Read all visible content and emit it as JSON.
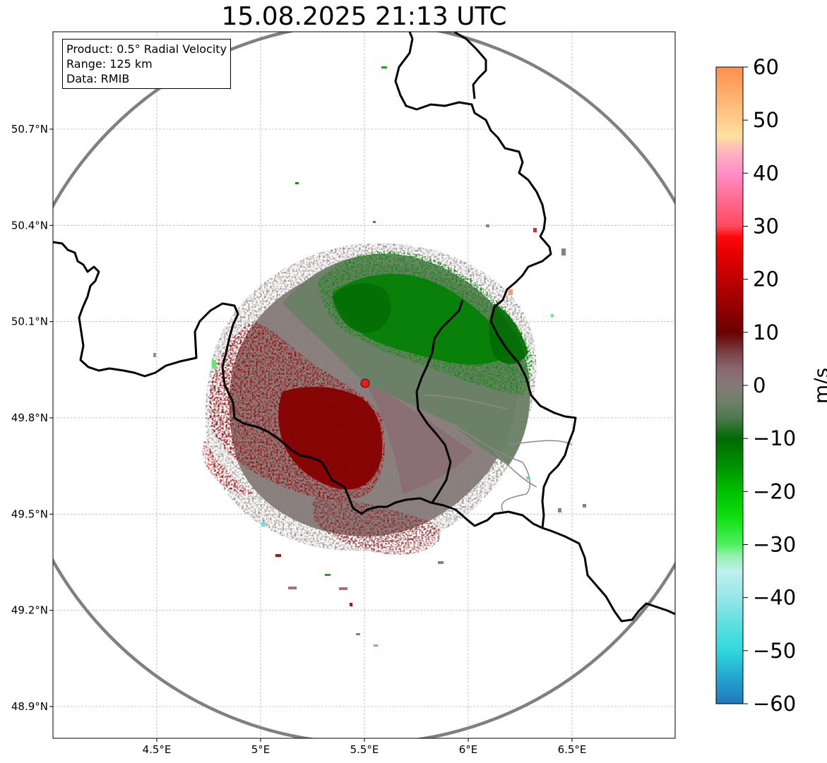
{
  "title": "15.08.2025 21:13 UTC",
  "info": {
    "product": "Product: 0.5° Radial Velocity",
    "range": "Range: 125 km",
    "source": "Data: RMIB"
  },
  "map": {
    "lon_range": [
      4.0,
      7.0
    ],
    "lat_range": [
      48.8,
      51.0
    ],
    "radar_site": {
      "lon": 5.505,
      "lat": 49.914
    },
    "lon_ticks": [
      "4.5°E",
      "5°E",
      "5.5°E",
      "6°E",
      "6.5°E"
    ],
    "lon_tick_values": [
      4.5,
      5.0,
      5.5,
      6.0,
      6.5
    ],
    "lat_ticks": [
      "50.7°N",
      "50.4°N",
      "50.1°N",
      "49.8°N",
      "49.5°N",
      "49.2°N",
      "48.9°N"
    ],
    "lat_tick_values": [
      50.7,
      50.4,
      50.1,
      49.8,
      49.5,
      49.2,
      48.9
    ],
    "colors": {
      "range_ring": "#808080",
      "border": "#000000",
      "grid": "#b0b0b0",
      "radar_marker": "#e02020"
    }
  },
  "colorbar": {
    "label": "m/s",
    "min": -60,
    "max": 60,
    "tick_labels": [
      "60",
      "50",
      "40",
      "30",
      "20",
      "10",
      "0",
      "−10",
      "−20",
      "−30",
      "−40",
      "−50",
      "−60"
    ],
    "tick_values": [
      60,
      50,
      40,
      30,
      20,
      10,
      0,
      -10,
      -20,
      -30,
      -40,
      -50,
      -60
    ],
    "stops": [
      {
        "v": -60,
        "c": "#1f78c0"
      },
      {
        "v": -55,
        "c": "#24a6cf"
      },
      {
        "v": -50,
        "c": "#2fd8dc"
      },
      {
        "v": -45,
        "c": "#5ee0e0"
      },
      {
        "v": -40,
        "c": "#97e6e8"
      },
      {
        "v": -35,
        "c": "#bff0f0"
      },
      {
        "v": -32,
        "c": "#93f0a8"
      },
      {
        "v": -30,
        "c": "#4ef060"
      },
      {
        "v": -25,
        "c": "#10e010"
      },
      {
        "v": -20,
        "c": "#00c000"
      },
      {
        "v": -15,
        "c": "#009000"
      },
      {
        "v": -10,
        "c": "#006a00"
      },
      {
        "v": -6,
        "c": "#4f7a50"
      },
      {
        "v": -3,
        "c": "#6e8068"
      },
      {
        "v": 0,
        "c": "#857a78"
      },
      {
        "v": 3,
        "c": "#8a6870"
      },
      {
        "v": 6,
        "c": "#7a4448"
      },
      {
        "v": 10,
        "c": "#6a0000"
      },
      {
        "v": 15,
        "c": "#960000"
      },
      {
        "v": 20,
        "c": "#c00000"
      },
      {
        "v": 25,
        "c": "#e60000"
      },
      {
        "v": 28,
        "c": "#ff0808"
      },
      {
        "v": 30,
        "c": "#ff4a60"
      },
      {
        "v": 35,
        "c": "#ff6a90"
      },
      {
        "v": 40,
        "c": "#ff8ec8"
      },
      {
        "v": 44,
        "c": "#ffb4c0"
      },
      {
        "v": 47,
        "c": "#ffe0a0"
      },
      {
        "v": 52,
        "c": "#ffc080"
      },
      {
        "v": 57,
        "c": "#ffa060"
      },
      {
        "v": 60,
        "c": "#ff9050"
      }
    ]
  }
}
